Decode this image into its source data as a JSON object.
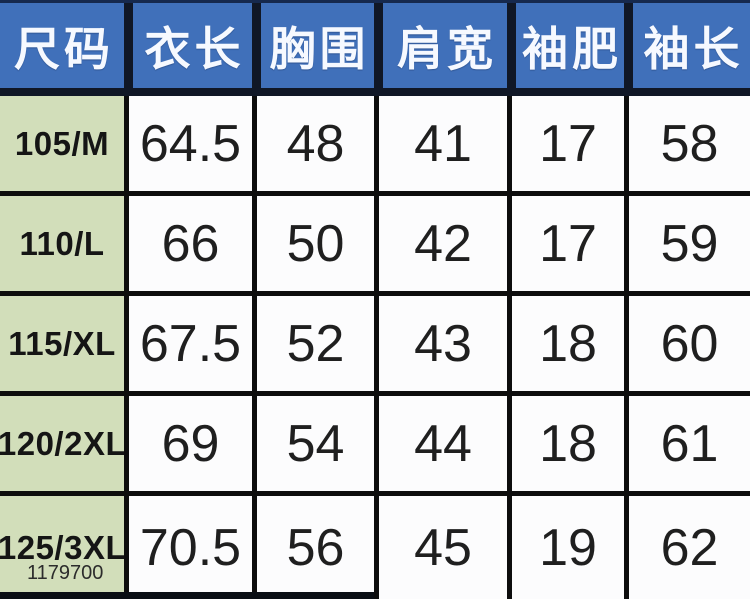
{
  "chart_data": {
    "type": "table",
    "columns": [
      "尺码",
      "衣长",
      "胸围",
      "肩宽",
      "袖肥",
      "袖长"
    ],
    "rows": [
      [
        "105/M",
        "64.5",
        "48",
        "41",
        "17",
        "58"
      ],
      [
        "110/L",
        "66",
        "50",
        "42",
        "17",
        "59"
      ],
      [
        "115/XL",
        "67.5",
        "52",
        "43",
        "18",
        "60"
      ],
      [
        "120/2XL",
        "69",
        "54",
        "44",
        "18",
        "61"
      ],
      [
        "125/3XL",
        "70.5",
        "56",
        "45",
        "19",
        "62"
      ]
    ],
    "layout": {
      "header_position": "top",
      "grid": "on",
      "row_label_column": "尺码"
    }
  },
  "watermark": "1179700",
  "colors": {
    "header_bg": "#4070ba",
    "header_text": "#f6f9ff",
    "header_separator": "#101726",
    "body_grid_line": "#0d0d0d",
    "size_column_bg": "#d2deba",
    "value_cell_bg": "#fcfcfd",
    "value_text": "#1f1f1f",
    "watermark_text": "#2c2c2c"
  }
}
